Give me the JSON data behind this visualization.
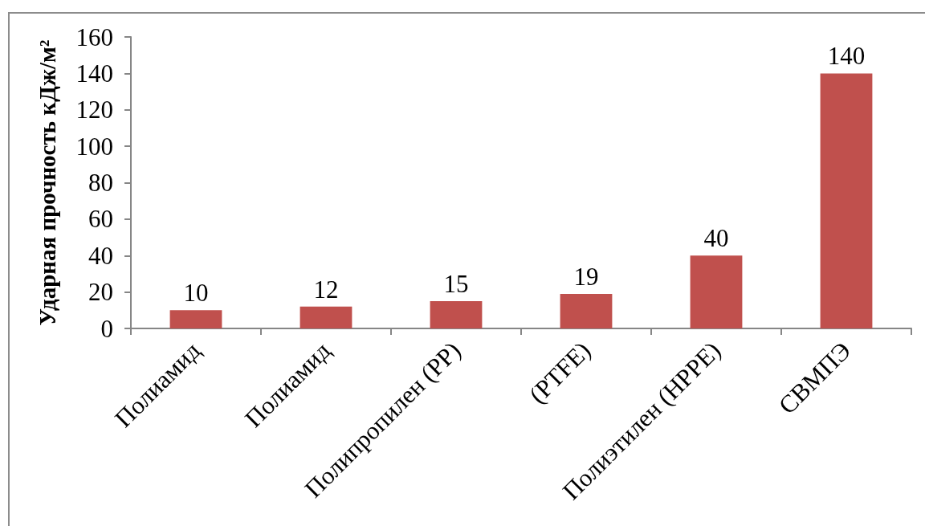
{
  "chart_data": {
    "type": "bar",
    "ylabel": "Ударная прочность кДж/м²",
    "categories": [
      "Полиамид",
      "Полиамид",
      "Полипропилен (PP)",
      "(PTFE)",
      "Полиэтилен (HPPE)",
      "СВМПЭ"
    ],
    "values": [
      10,
      12,
      15,
      19,
      40,
      140
    ],
    "color": "#c0504d",
    "ylim": [
      0,
      160
    ],
    "yticks": [
      0,
      20,
      40,
      60,
      80,
      100,
      120,
      140,
      160
    ],
    "data_labels": true
  }
}
